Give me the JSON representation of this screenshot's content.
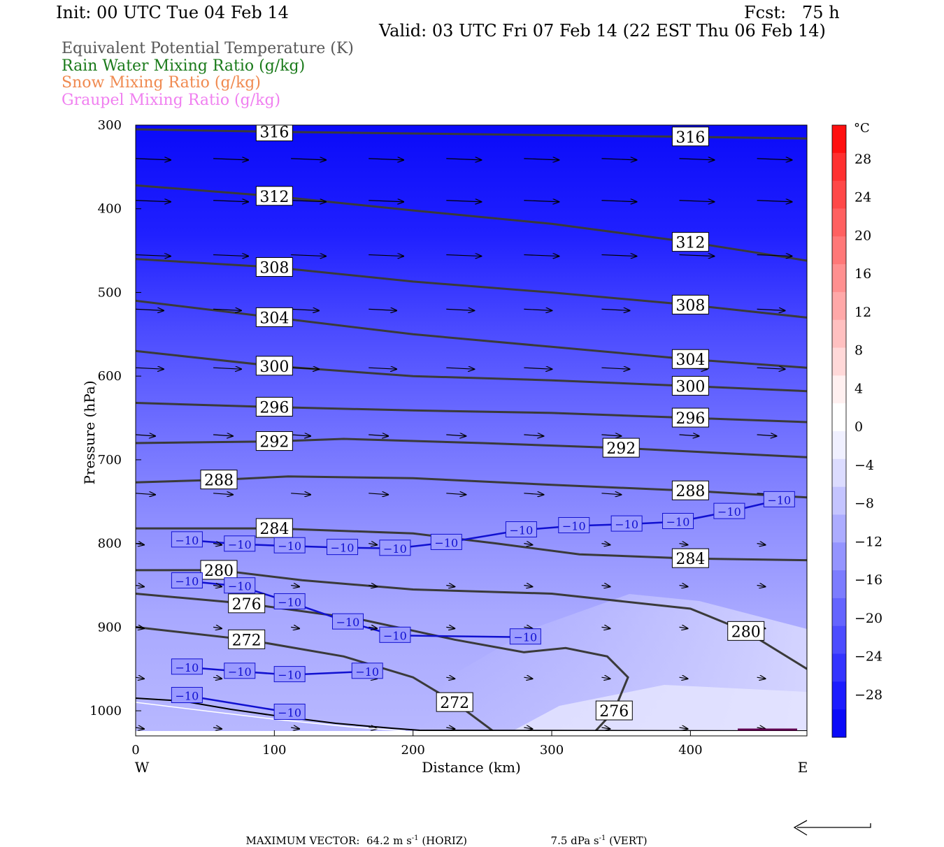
{
  "header": {
    "init": "Init: 00 UTC Tue 04 Feb 14",
    "fcst": "Fcst:   75 h",
    "valid": "Valid: 03 UTC Fri 07 Feb 14 (22 EST Thu 06 Feb 14)"
  },
  "legend": [
    {
      "label": "Equivalent Potential Temperature (K)",
      "color": "#555555"
    },
    {
      "label": "Rain Water Mixing Ratio (g/kg)",
      "color": "#1a7a1a"
    },
    {
      "label": "Snow Mixing Ratio (g/kg)",
      "color": "#f08a50"
    },
    {
      "label": "Graupel Mixing Ratio (g/kg)",
      "color": "#f080f0"
    }
  ],
  "chart_data": {
    "type": "cross-section",
    "xlabel": "Distance (km)",
    "ylabel": "Pressure (hPa)",
    "xlim": [
      0,
      484
    ],
    "ylim": [
      1030,
      300
    ],
    "x_ticks": [
      0,
      100,
      200,
      300,
      400
    ],
    "y_ticks": [
      300,
      400,
      500,
      600,
      700,
      800,
      900,
      1000
    ],
    "x_end_labels": {
      "left": "W",
      "right": "E"
    },
    "colorbar": {
      "unit": "°C",
      "labels": [
        "28",
        "24",
        "20",
        "16",
        "12",
        "8",
        "4",
        "0",
        "−4",
        "−8",
        "−12",
        "−16",
        "−20",
        "−24",
        "−28"
      ],
      "label_values": [
        28,
        24,
        20,
        16,
        12,
        8,
        4,
        0,
        -4,
        -8,
        -12,
        -16,
        -20,
        -24,
        -28
      ],
      "colors": [
        "#ff1010",
        "#ff3030",
        "#ff4848",
        "#ff6060",
        "#ff7878",
        "#ff9090",
        "#ffa8a8",
        "#ffc0c0",
        "#ffd8d8",
        "#fff0f0",
        "#ffffff",
        "#f0f0ff",
        "#dcdcff",
        "#c4c4ff",
        "#acacff",
        "#9494ff",
        "#7c7cff",
        "#6464ff",
        "#4c4cff",
        "#3434ff",
        "#1c1cff",
        "#0a0af8"
      ]
    },
    "theta_e_contours": [
      {
        "value": 316,
        "points": [
          [
            0,
            305
          ],
          [
            100,
            308
          ],
          [
            200,
            310
          ],
          [
            300,
            312
          ],
          [
            400,
            314
          ],
          [
            484,
            316
          ]
        ]
      },
      {
        "value": 312,
        "points": [
          [
            0,
            372
          ],
          [
            100,
            385
          ],
          [
            200,
            402
          ],
          [
            300,
            418
          ],
          [
            400,
            440
          ],
          [
            484,
            462
          ]
        ]
      },
      {
        "value": 308,
        "points": [
          [
            0,
            460
          ],
          [
            100,
            470
          ],
          [
            200,
            487
          ],
          [
            300,
            500
          ],
          [
            400,
            515
          ],
          [
            484,
            530
          ]
        ]
      },
      {
        "value": 304,
        "points": [
          [
            0,
            510
          ],
          [
            100,
            530
          ],
          [
            200,
            550
          ],
          [
            300,
            565
          ],
          [
            400,
            580
          ],
          [
            484,
            590
          ]
        ]
      },
      {
        "value": 300,
        "points": [
          [
            0,
            570
          ],
          [
            100,
            588
          ],
          [
            200,
            600
          ],
          [
            300,
            605
          ],
          [
            400,
            612
          ],
          [
            484,
            618
          ]
        ]
      },
      {
        "value": 296,
        "points": [
          [
            0,
            632
          ],
          [
            100,
            637
          ],
          [
            200,
            641
          ],
          [
            300,
            644
          ],
          [
            400,
            650
          ],
          [
            484,
            655
          ]
        ]
      },
      {
        "value": 292,
        "points": [
          [
            0,
            680
          ],
          [
            100,
            678
          ],
          [
            150,
            675
          ],
          [
            250,
            680
          ],
          [
            350,
            686
          ],
          [
            484,
            697
          ]
        ]
      },
      {
        "value": 288,
        "points": [
          [
            0,
            727
          ],
          [
            60,
            724
          ],
          [
            110,
            720
          ],
          [
            200,
            722
          ],
          [
            300,
            730
          ],
          [
            400,
            737
          ],
          [
            484,
            745
          ]
        ]
      },
      {
        "value": 284,
        "points": [
          [
            0,
            782
          ],
          [
            100,
            782
          ],
          [
            200,
            788
          ],
          [
            260,
            800
          ],
          [
            320,
            813
          ],
          [
            400,
            818
          ],
          [
            484,
            820
          ]
        ]
      },
      {
        "value": 280,
        "points": [
          [
            0,
            832
          ],
          [
            60,
            832
          ],
          [
            120,
            844
          ],
          [
            200,
            855
          ],
          [
            300,
            860
          ],
          [
            400,
            878
          ],
          [
            440,
            905
          ],
          [
            484,
            950
          ]
        ]
      },
      {
        "value": 276,
        "points": [
          [
            0,
            860
          ],
          [
            80,
            872
          ],
          [
            160,
            890
          ],
          [
            230,
            915
          ],
          [
            280,
            930
          ],
          [
            310,
            925
          ],
          [
            340,
            935
          ],
          [
            355,
            960
          ],
          [
            345,
            1000
          ],
          [
            330,
            1027
          ]
        ]
      },
      {
        "value": 272,
        "points": [
          [
            0,
            900
          ],
          [
            80,
            915
          ],
          [
            150,
            935
          ],
          [
            200,
            960
          ],
          [
            230,
            990
          ],
          [
            260,
            1027
          ]
        ]
      }
    ],
    "temperature_isotherm": {
      "value": -10,
      "label": "−10",
      "color": "#1010d0",
      "labels_at": [
        [
          37,
          796
        ],
        [
          75,
          801
        ],
        [
          111,
          803
        ],
        [
          149,
          805
        ],
        [
          187,
          806
        ],
        [
          224,
          799
        ],
        [
          278,
          784
        ],
        [
          316,
          779
        ],
        [
          354,
          777
        ],
        [
          391,
          774
        ],
        [
          428,
          762
        ],
        [
          464,
          748
        ],
        [
          37,
          845
        ],
        [
          75,
          851
        ],
        [
          111,
          870
        ],
        [
          153,
          894
        ],
        [
          187,
          910
        ],
        [
          281,
          912
        ],
        [
          37,
          948
        ],
        [
          75,
          953
        ],
        [
          111,
          957
        ],
        [
          167,
          953
        ],
        [
          37,
          982
        ],
        [
          111,
          1002
        ]
      ]
    },
    "vectors_note": "wind vectors",
    "footer": {
      "max_vector_label": "MAXIMUM VECTOR:",
      "horiz": "64.2 m s",
      "horiz_exp": "-1",
      "horiz_suffix": " (HORIZ)",
      "vert": "7.5 dPa s",
      "vert_exp": "-1",
      "vert_suffix": " (VERT)"
    }
  }
}
